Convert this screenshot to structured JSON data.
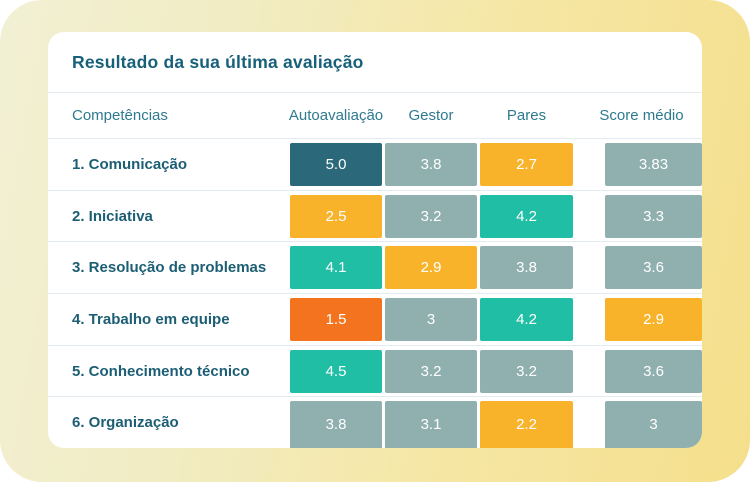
{
  "page": {
    "background_gradient": [
      "#F2F0D4",
      "#F5E7A6",
      "#F5DF8C"
    ]
  },
  "card": {
    "title": "Resultado da sua última avaliação",
    "columns": [
      "Competências",
      "Autoavaliação",
      "Gestor",
      "Pares",
      "Score médio"
    ],
    "colors": {
      "darkTeal": "#2B6879",
      "sage": "#8FB0AE",
      "amber": "#F8B32B",
      "green": "#1FBEA5",
      "orange": "#F4731F"
    },
    "rows": [
      {
        "label": "1. Comunicação",
        "scores": [
          {
            "v": "5.0",
            "c": "darkTeal"
          },
          {
            "v": "3.8",
            "c": "sage"
          },
          {
            "v": "2.7",
            "c": "amber"
          },
          {
            "v": "3.83",
            "c": "sage"
          }
        ]
      },
      {
        "label": "2. Iniciativa",
        "scores": [
          {
            "v": "2.5",
            "c": "amber"
          },
          {
            "v": "3.2",
            "c": "sage"
          },
          {
            "v": "4.2",
            "c": "green"
          },
          {
            "v": "3.3",
            "c": "sage"
          }
        ]
      },
      {
        "label": "3. Resolução de problemas",
        "scores": [
          {
            "v": "4.1",
            "c": "green"
          },
          {
            "v": "2.9",
            "c": "amber"
          },
          {
            "v": "3.8",
            "c": "sage"
          },
          {
            "v": "3.6",
            "c": "sage"
          }
        ]
      },
      {
        "label": "4. Trabalho em equipe",
        "scores": [
          {
            "v": "1.5",
            "c": "orange"
          },
          {
            "v": "3",
            "c": "sage"
          },
          {
            "v": "4.2",
            "c": "green"
          },
          {
            "v": "2.9",
            "c": "amber"
          }
        ]
      },
      {
        "label": "5. Conhecimento técnico",
        "scores": [
          {
            "v": "4.5",
            "c": "green"
          },
          {
            "v": "3.2",
            "c": "sage"
          },
          {
            "v": "3.2",
            "c": "sage"
          },
          {
            "v": "3.6",
            "c": "sage"
          }
        ]
      },
      {
        "label": "6. Organização",
        "scores": [
          {
            "v": "3.8",
            "c": "sage"
          },
          {
            "v": "3.1",
            "c": "sage"
          },
          {
            "v": "2.2",
            "c": "amber"
          },
          {
            "v": "3",
            "c": "sage"
          }
        ]
      }
    ]
  }
}
